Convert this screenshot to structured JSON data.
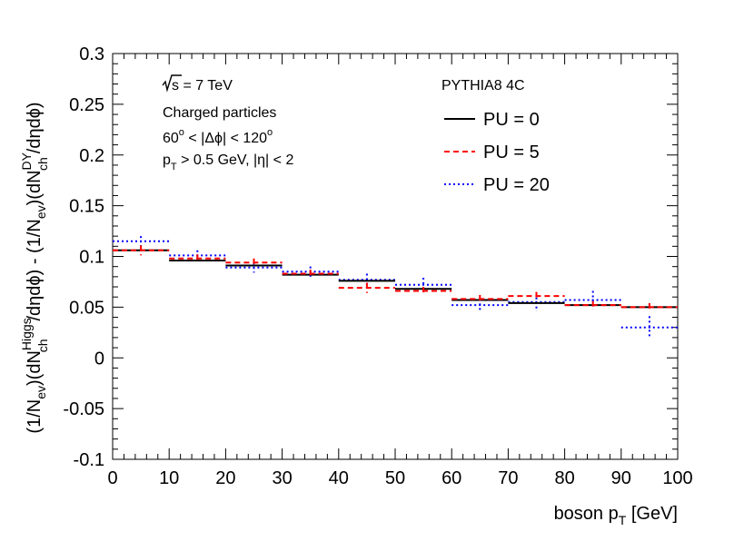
{
  "chart_data": {
    "type": "step-histogram",
    "xlabel_main": "boson p",
    "xlabel_sub": "T",
    "xlabel_unit": "[GeV]",
    "ylabel": "(1/N_ev)(dN_ch^Higgs/dηdϕ) - (1/N_ev)(dN_ch^DY/dηdϕ)",
    "xlim": [
      0,
      100
    ],
    "ylim": [
      -0.1,
      0.3
    ],
    "x_ticks": [
      "0",
      "10",
      "20",
      "30",
      "40",
      "50",
      "60",
      "70",
      "80",
      "90",
      "100"
    ],
    "y_ticks": [
      "-0.1",
      "-0.05",
      "0",
      "0.05",
      "0.1",
      "0.15",
      "0.2",
      "0.25",
      "0.3"
    ],
    "bin_edges": [
      0,
      10,
      20,
      30,
      40,
      50,
      60,
      70,
      80,
      90,
      100
    ],
    "series": [
      {
        "name": "PU = 0",
        "style": "solid",
        "color": "#000000",
        "values": [
          0.106,
          0.096,
          0.091,
          0.082,
          0.076,
          0.068,
          0.057,
          0.054,
          0.052,
          0.05
        ],
        "errors": [
          0,
          0,
          0,
          0,
          0,
          0,
          0,
          0,
          0,
          0
        ]
      },
      {
        "name": "PU = 5",
        "style": "dashed",
        "color": "#ff0000",
        "values": [
          0.106,
          0.098,
          0.094,
          0.083,
          0.069,
          0.066,
          0.058,
          0.061,
          0.052,
          0.05
        ],
        "errors": [
          0.005,
          0.004,
          0.004,
          0.004,
          0.005,
          0.004,
          0.004,
          0.004,
          0.004,
          0.004
        ]
      },
      {
        "name": "PU = 20",
        "style": "dotted",
        "color": "#0000ff",
        "values": [
          0.115,
          0.101,
          0.089,
          0.085,
          0.077,
          0.072,
          0.052,
          0.055,
          0.057,
          0.03
        ],
        "errors": [
          0.005,
          0.005,
          0.005,
          0.005,
          0.006,
          0.007,
          0.006,
          0.009,
          0.009,
          0.011
        ]
      }
    ],
    "annotations": {
      "sqrt_s": "s",
      "energy": " = 7 TeV",
      "charged": "Charged particles",
      "dphi_lo": "60",
      "dphi_sup": "o",
      "dphi_mid": " < |Δϕ| < 120",
      "pt_p": "p",
      "pt_sub": "T",
      "pt_rest": " > 0.5 GeV, |η| < 2",
      "generator": "PYTHIA8 4C"
    },
    "legend_position": "top-right"
  }
}
